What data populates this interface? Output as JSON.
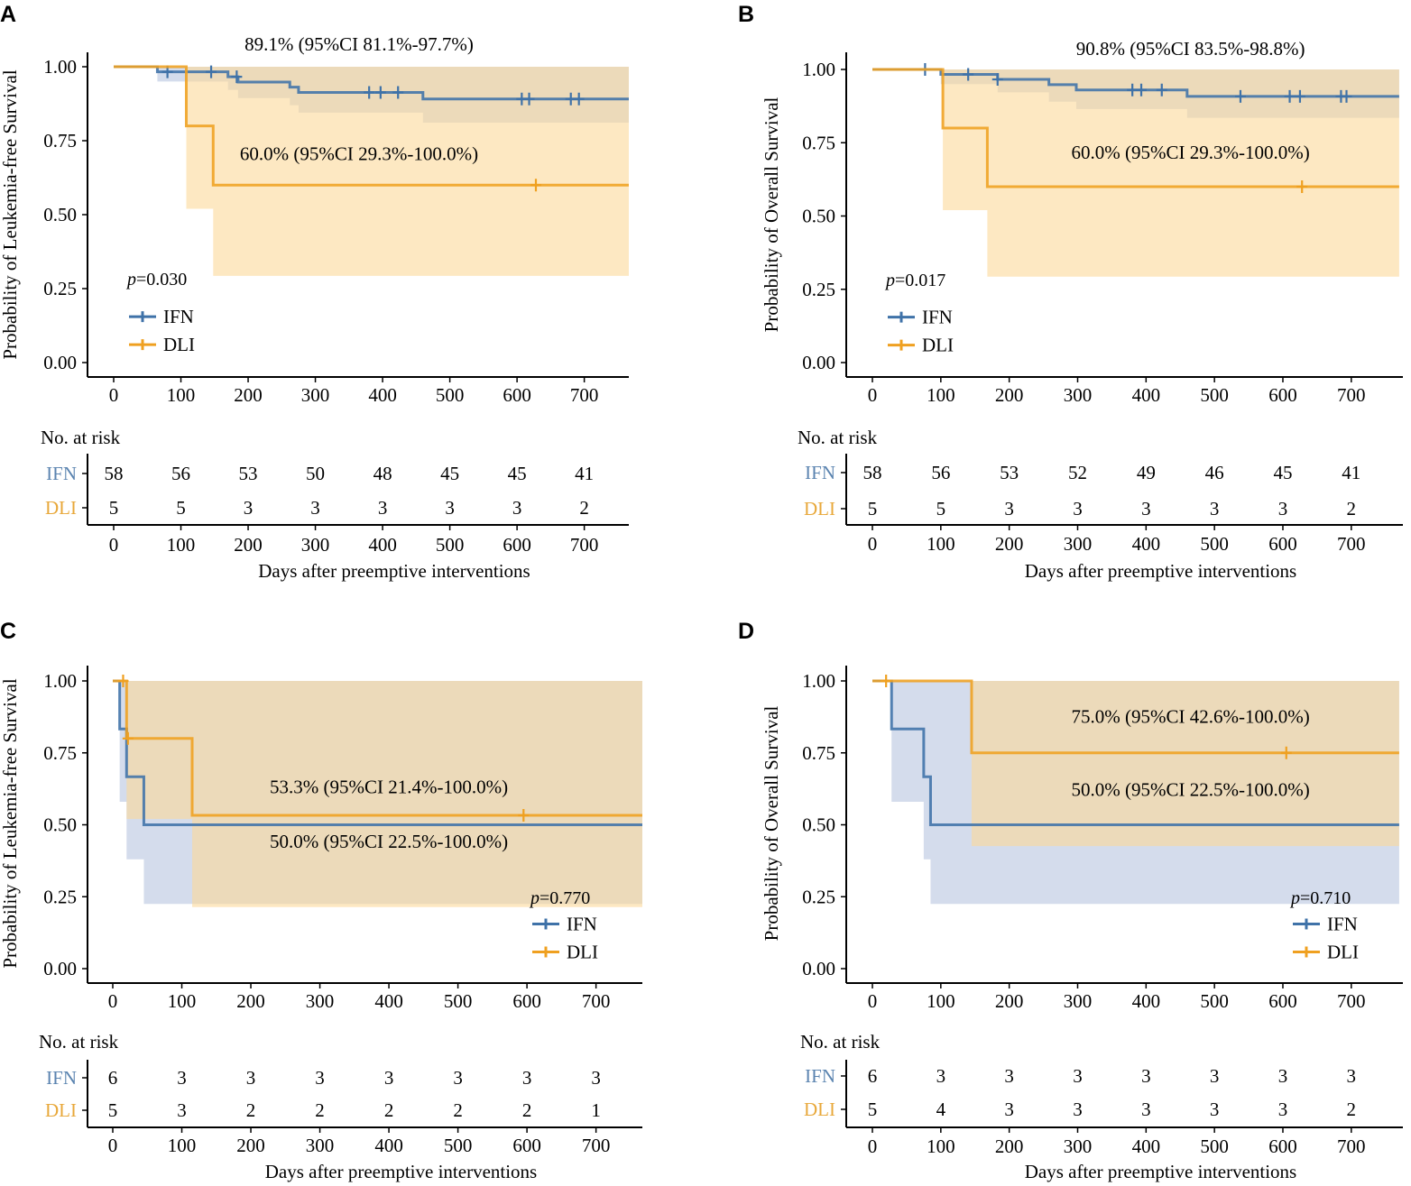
{
  "chart_data": [
    {
      "type": "line",
      "subtype": "kaplan-meier",
      "panel_label": "A",
      "ylabel": "Probability of Leukemia-free Survival",
      "xlabel": "Days after preemptive interventions",
      "xlim": [
        0,
        770
      ],
      "ylim": [
        0,
        1
      ],
      "xticks": [
        0,
        100,
        200,
        300,
        400,
        500,
        600,
        700
      ],
      "yticks": [
        "0.00",
        "0.25",
        "0.50",
        "0.75",
        "1.00"
      ],
      "p_prefix": "p",
      "p_value": "=0.030",
      "legend_position": "bottom-left",
      "annotations": [
        {
          "text": "89.1% (95%CI 81.1%-97.7%)",
          "x": 365,
          "y": 1.055
        },
        {
          "text": "60.0% (95%CI 29.3%-100.0%)",
          "x": 365,
          "y": 0.685
        }
      ],
      "series": [
        {
          "name": "IFN",
          "color": "#3f72a8",
          "steps": [
            [
              0,
              1.0
            ],
            [
              65,
              0.983
            ],
            [
              170,
              0.966
            ],
            [
              185,
              0.948
            ],
            [
              262,
              0.931
            ],
            [
              275,
              0.913
            ],
            [
              460,
              0.891
            ],
            [
              770,
              0.891
            ]
          ],
          "censor": [
            [
              80,
              0.983
            ],
            [
              145,
              0.983
            ],
            [
              183,
              0.966
            ],
            [
              380,
              0.913
            ],
            [
              397,
              0.913
            ],
            [
              423,
              0.913
            ],
            [
              607,
              0.891
            ],
            [
              618,
              0.891
            ],
            [
              680,
              0.891
            ],
            [
              692,
              0.891
            ]
          ],
          "ci": [
            [
              0,
              1.0,
              1.0
            ],
            [
              65,
              1.0,
              0.95
            ],
            [
              170,
              1.0,
              0.922
            ],
            [
              185,
              1.0,
              0.894
            ],
            [
              262,
              1.0,
              0.87
            ],
            [
              275,
              1.0,
              0.845
            ],
            [
              460,
              1.0,
              0.811
            ],
            [
              770,
              1.0,
              0.811
            ]
          ]
        },
        {
          "name": "DLI",
          "color": "#efa020",
          "steps": [
            [
              0,
              1.0
            ],
            [
              108,
              0.8
            ],
            [
              148,
              0.6
            ],
            [
              770,
              0.6
            ]
          ],
          "censor": [
            [
              628,
              0.6
            ]
          ],
          "ci": [
            [
              0,
              1.0,
              1.0
            ],
            [
              108,
              1.0,
              0.52
            ],
            [
              148,
              1.0,
              0.293
            ],
            [
              770,
              1.0,
              0.293
            ]
          ]
        }
      ],
      "risk_table": {
        "title": "No. at risk",
        "times": [
          0,
          100,
          200,
          300,
          400,
          500,
          600,
          700
        ],
        "rows": [
          {
            "label": "IFN",
            "values": [
              58,
              56,
              53,
              50,
              48,
              45,
              45,
              41
            ]
          },
          {
            "label": "DLI",
            "values": [
              5,
              5,
              3,
              3,
              3,
              3,
              3,
              2
            ]
          }
        ]
      }
    },
    {
      "type": "line",
      "subtype": "kaplan-meier",
      "panel_label": "B",
      "ylabel": "Probability of Overall Survival",
      "xlabel": "Days after preemptive interventions",
      "xlim": [
        0,
        770
      ],
      "ylim": [
        0,
        1
      ],
      "xticks": [
        0,
        100,
        200,
        300,
        400,
        500,
        600,
        700
      ],
      "yticks": [
        "0.00",
        "0.25",
        "0.50",
        "0.75",
        "1.00"
      ],
      "p_prefix": "p",
      "p_value": "=0.017",
      "legend_position": "bottom-left",
      "annotations": [
        {
          "text": "90.8% (95%CI 83.5%-98.8%)",
          "x": 465,
          "y": 1.05
        },
        {
          "text": "60.0% (95%CI 29.3%-100.0%)",
          "x": 465,
          "y": 0.695
        }
      ],
      "series": [
        {
          "name": "IFN",
          "color": "#3f72a8",
          "steps": [
            [
              0,
              1.0
            ],
            [
              100,
              0.983
            ],
            [
              183,
              0.966
            ],
            [
              258,
              0.948
            ],
            [
              298,
              0.93
            ],
            [
              460,
              0.908
            ],
            [
              770,
              0.908
            ]
          ],
          "censor": [
            [
              77,
              1.0
            ],
            [
              140,
              0.983
            ],
            [
              183,
              0.966
            ],
            [
              380,
              0.93
            ],
            [
              393,
              0.93
            ],
            [
              423,
              0.93
            ],
            [
              538,
              0.908
            ],
            [
              610,
              0.908
            ],
            [
              625,
              0.908
            ],
            [
              685,
              0.908
            ],
            [
              693,
              0.908
            ]
          ],
          "ci": [
            [
              0,
              1.0,
              1.0
            ],
            [
              100,
              1.0,
              0.95
            ],
            [
              183,
              1.0,
              0.922
            ],
            [
              258,
              1.0,
              0.89
            ],
            [
              298,
              1.0,
              0.865
            ],
            [
              460,
              1.0,
              0.835
            ],
            [
              770,
              1.0,
              0.835
            ]
          ]
        },
        {
          "name": "DLI",
          "color": "#efa020",
          "steps": [
            [
              0,
              1.0
            ],
            [
              103,
              0.8
            ],
            [
              168,
              0.6
            ],
            [
              770,
              0.6
            ]
          ],
          "censor": [
            [
              628,
              0.6
            ]
          ],
          "ci": [
            [
              0,
              1.0,
              1.0
            ],
            [
              103,
              1.0,
              0.52
            ],
            [
              168,
              1.0,
              0.293
            ],
            [
              770,
              1.0,
              0.293
            ]
          ]
        }
      ],
      "risk_table": {
        "title": "No. at risk",
        "times": [
          0,
          100,
          200,
          300,
          400,
          500,
          600,
          700
        ],
        "rows": [
          {
            "label": "IFN",
            "values": [
              58,
              56,
              53,
              52,
              49,
              46,
              45,
              41
            ]
          },
          {
            "label": "DLI",
            "values": [
              5,
              5,
              3,
              3,
              3,
              3,
              3,
              2
            ]
          }
        ]
      }
    },
    {
      "type": "line",
      "subtype": "kaplan-meier",
      "panel_label": "C",
      "ylabel": "Probability of Leukemia-free Survival",
      "xlabel": "Days after preemptive interventions",
      "xlim": [
        0,
        770
      ],
      "ylim": [
        0,
        1
      ],
      "xticks": [
        0,
        100,
        200,
        300,
        400,
        500,
        600,
        700
      ],
      "yticks": [
        "0.00",
        "0.25",
        "0.50",
        "0.75",
        "1.00"
      ],
      "p_prefix": "p",
      "p_value": "=0.770",
      "legend_position": "bottom-right",
      "annotations": [
        {
          "text": "53.3% (95%CI 21.4%-100.0%)",
          "x": 400,
          "y": 0.61
        },
        {
          "text": "50.0% (95%CI 22.5%-100.0%)",
          "x": 400,
          "y": 0.42
        }
      ],
      "series": [
        {
          "name": "IFN",
          "color": "#3f72a8",
          "steps": [
            [
              0,
              1.0
            ],
            [
              10,
              0.833
            ],
            [
              20,
              0.667
            ],
            [
              45,
              0.5
            ],
            [
              770,
              0.5
            ]
          ],
          "censor": [],
          "ci": [
            [
              0,
              1.0,
              1.0
            ],
            [
              10,
              1.0,
              0.58
            ],
            [
              20,
              1.0,
              0.38
            ],
            [
              45,
              1.0,
              0.225
            ],
            [
              770,
              1.0,
              0.225
            ]
          ]
        },
        {
          "name": "DLI",
          "color": "#efa020",
          "steps": [
            [
              0,
              1.0
            ],
            [
              20,
              0.8
            ],
            [
              115,
              0.533
            ],
            [
              770,
              0.533
            ]
          ],
          "censor": [
            [
              15,
              1.0
            ],
            [
              22,
              0.8
            ],
            [
              595,
              0.533
            ]
          ],
          "ci": [
            [
              0,
              1.0,
              1.0
            ],
            [
              20,
              1.0,
              0.52
            ],
            [
              115,
              1.0,
              0.214
            ],
            [
              770,
              1.0,
              0.214
            ]
          ]
        }
      ],
      "risk_table": {
        "title": "No. at risk",
        "times": [
          0,
          100,
          200,
          300,
          400,
          500,
          600,
          700
        ],
        "rows": [
          {
            "label": "IFN",
            "values": [
              6,
              3,
              3,
              3,
              3,
              3,
              3,
              3
            ]
          },
          {
            "label": "DLI",
            "values": [
              5,
              3,
              2,
              2,
              2,
              2,
              2,
              1
            ]
          }
        ]
      }
    },
    {
      "type": "line",
      "subtype": "kaplan-meier",
      "panel_label": "D",
      "ylabel": "Probability of Overall Survival",
      "xlabel": "Days after preemptive interventions",
      "xlim": [
        0,
        770
      ],
      "ylim": [
        0,
        1
      ],
      "xticks": [
        0,
        100,
        200,
        300,
        400,
        500,
        600,
        700
      ],
      "yticks": [
        "0.00",
        "0.25",
        "0.50",
        "0.75",
        "1.00"
      ],
      "p_prefix": "p",
      "p_value": "=0.710",
      "legend_position": "bottom-right",
      "annotations": [
        {
          "text": "75.0% (95%CI 42.6%-100.0%)",
          "x": 465,
          "y": 0.855
        },
        {
          "text": "50.0% (95%CI 22.5%-100.0%)",
          "x": 465,
          "y": 0.6
        }
      ],
      "series": [
        {
          "name": "IFN",
          "color": "#3f72a8",
          "steps": [
            [
              0,
              1.0
            ],
            [
              28,
              0.833
            ],
            [
              75,
              0.667
            ],
            [
              85,
              0.5
            ],
            [
              770,
              0.5
            ]
          ],
          "censor": [],
          "ci": [
            [
              0,
              1.0,
              1.0
            ],
            [
              28,
              1.0,
              0.58
            ],
            [
              75,
              1.0,
              0.38
            ],
            [
              85,
              1.0,
              0.225
            ],
            [
              770,
              1.0,
              0.225
            ]
          ]
        },
        {
          "name": "DLI",
          "color": "#efa020",
          "steps": [
            [
              0,
              1.0
            ],
            [
              145,
              0.75
            ],
            [
              770,
              0.75
            ]
          ],
          "censor": [
            [
              20,
              1.0
            ],
            [
              605,
              0.75
            ]
          ],
          "ci": [
            [
              0,
              1.0,
              1.0
            ],
            [
              145,
              1.0,
              0.426
            ],
            [
              770,
              1.0,
              0.426
            ]
          ]
        }
      ],
      "risk_table": {
        "title": "No. at risk",
        "times": [
          0,
          100,
          200,
          300,
          400,
          500,
          600,
          700
        ],
        "rows": [
          {
            "label": "IFN",
            "values": [
              6,
              3,
              3,
              3,
              3,
              3,
              3,
              3
            ]
          },
          {
            "label": "DLI",
            "values": [
              5,
              4,
              3,
              3,
              3,
              3,
              3,
              2
            ]
          }
        ]
      }
    }
  ]
}
